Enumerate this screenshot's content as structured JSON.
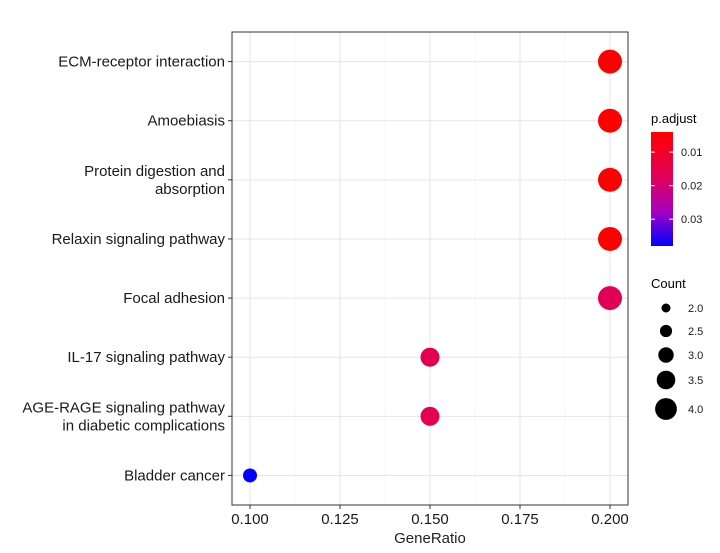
{
  "chart_data": {
    "type": "scatter",
    "xlabel": "GeneRatio",
    "ylabel": "",
    "xlim": [
      0.095,
      0.205
    ],
    "x_ticks": [
      0.1,
      0.125,
      0.15,
      0.175,
      0.2
    ],
    "x_tick_labels": [
      "0.100",
      "0.125",
      "0.150",
      "0.175",
      "0.200"
    ],
    "grid": true,
    "categories": [
      "ECM-receptor interaction",
      "Amoebiasis",
      "Protein digestion and\nabsorption",
      "Relaxin signaling pathway",
      "Focal adhesion",
      "IL-17 signaling pathway",
      "AGE-RAGE signaling pathway\nin diabetic complications",
      "Bladder cancer"
    ],
    "points": [
      {
        "term": "ECM-receptor interaction",
        "gene_ratio": 0.2,
        "count": 4,
        "p_adjust": 0.004
      },
      {
        "term": "Amoebiasis",
        "gene_ratio": 0.2,
        "count": 4,
        "p_adjust": 0.004
      },
      {
        "term": "Protein digestion and absorption",
        "gene_ratio": 0.2,
        "count": 4,
        "p_adjust": 0.004
      },
      {
        "term": "Relaxin signaling pathway",
        "gene_ratio": 0.2,
        "count": 4,
        "p_adjust": 0.004
      },
      {
        "term": "Focal adhesion",
        "gene_ratio": 0.2,
        "count": 4,
        "p_adjust": 0.017
      },
      {
        "term": "IL-17 signaling pathway",
        "gene_ratio": 0.15,
        "count": 3,
        "p_adjust": 0.016
      },
      {
        "term": "AGE-RAGE signaling pathway in diabetic complications",
        "gene_ratio": 0.15,
        "count": 3,
        "p_adjust": 0.016
      },
      {
        "term": "Bladder cancer",
        "gene_ratio": 0.1,
        "count": 2,
        "p_adjust": 0.038
      }
    ],
    "color_legend": {
      "title": "p.adjust",
      "ticks": [
        0.01,
        0.02,
        0.03
      ],
      "tick_labels": [
        "0.01",
        "0.02",
        "0.03"
      ],
      "range": [
        0.004,
        0.038
      ],
      "low_color": "#ff0000",
      "high_color": "#0000ff"
    },
    "size_legend": {
      "title": "Count",
      "values": [
        2.0,
        2.5,
        3.0,
        3.5,
        4.0
      ],
      "labels": [
        "2.0",
        "2.5",
        "3.0",
        "3.5",
        "4.0"
      ]
    },
    "legend_position": "right"
  }
}
